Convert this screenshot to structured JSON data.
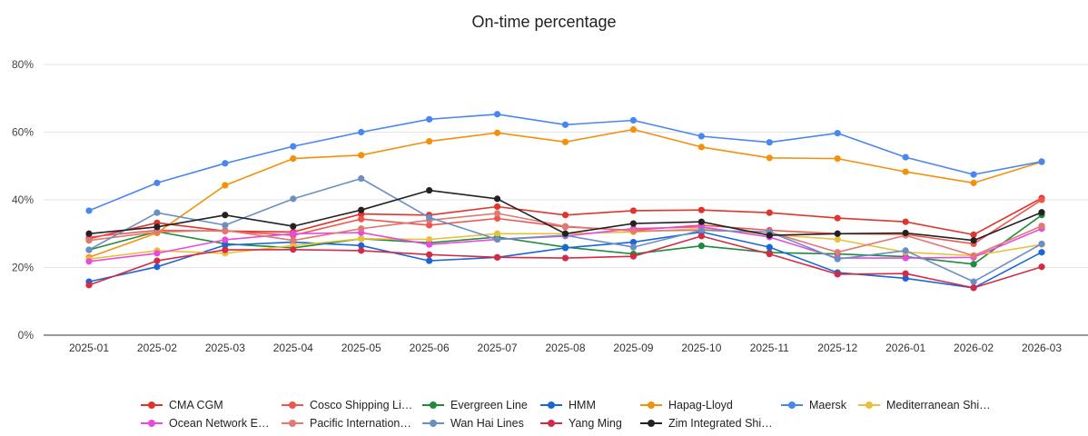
{
  "chart_data": {
    "type": "line",
    "title": "On-time percentage",
    "xlabel": "",
    "ylabel": "",
    "ylim": [
      0,
      80
    ],
    "yticks": [
      "0%",
      "20%",
      "40%",
      "60%",
      "80%"
    ],
    "y_unit": "%",
    "grid": true,
    "legend_position": "bottom",
    "categories": [
      "2025-01",
      "2025-02",
      "2025-03",
      "2025-04",
      "2025-05",
      "2025-06",
      "2025-07",
      "2025-08",
      "2025-09",
      "2025-10",
      "2025-11",
      "2025-12",
      "2026-01",
      "2026-02",
      "2026-03"
    ],
    "series": [
      {
        "name": "CMA CGM",
        "legend_label": "CMA CGM",
        "color": "#e0342c",
        "values": [
          28.5,
          33.2,
          30.8,
          30.5,
          35.8,
          35.5,
          38.0,
          35.5,
          36.8,
          37.0,
          36.2,
          34.6,
          33.5,
          29.7,
          40.5
        ]
      },
      {
        "name": "Cosco Shipping Lines",
        "legend_label": "Cosco Shipping Li…",
        "color": "#f0554d",
        "values": [
          29.0,
          31.0,
          30.8,
          29.5,
          34.3,
          32.5,
          34.5,
          32.0,
          31.0,
          32.5,
          31.0,
          30.0,
          29.8,
          27.0,
          40.0
        ]
      },
      {
        "name": "Evergreen Line",
        "legend_label": "Evergreen Line",
        "color": "#1e8c3a",
        "values": [
          25.2,
          30.6,
          27.0,
          25.8,
          28.5,
          27.3,
          29.0,
          26.0,
          24.0,
          26.4,
          24.4,
          24.0,
          23.2,
          21.0,
          35.5
        ]
      },
      {
        "name": "HMM",
        "legend_label": "HMM",
        "color": "#1a66d9",
        "values": [
          15.8,
          20.2,
          26.6,
          27.5,
          26.5,
          22.0,
          23.0,
          25.8,
          27.5,
          30.5,
          26.0,
          18.5,
          16.8,
          14.0,
          24.5
        ]
      },
      {
        "name": "Hapag-Lloyd",
        "legend_label": "Hapag-Lloyd",
        "color": "#f4900c",
        "values": [
          23.0,
          30.2,
          44.3,
          52.2,
          53.2,
          57.3,
          59.8,
          57.1,
          60.8,
          55.6,
          52.4,
          52.2,
          48.3,
          45.0,
          51.2
        ]
      },
      {
        "name": "Maersk",
        "legend_label": "Maersk",
        "color": "#4a86f0",
        "values": [
          36.8,
          45.0,
          50.8,
          55.8,
          60.0,
          63.8,
          65.3,
          62.2,
          63.5,
          58.8,
          57.0,
          59.7,
          52.6,
          47.5,
          51.3
        ]
      },
      {
        "name": "Mediterranean Shipping Company",
        "legend_label": "Mediterranean Shi…",
        "color": "#e8c03a",
        "values": [
          22.5,
          25.0,
          24.2,
          26.5,
          28.5,
          28.3,
          30.0,
          30.0,
          30.5,
          31.5,
          29.8,
          28.3,
          24.5,
          23.5,
          26.8
        ]
      },
      {
        "name": "Ocean Network Express",
        "legend_label": "Ocean Network E…",
        "color": "#e84ae0",
        "values": [
          21.8,
          24.2,
          28.2,
          30.0,
          30.3,
          26.8,
          28.3,
          29.3,
          31.5,
          32.0,
          29.0,
          22.8,
          22.8,
          23.0,
          31.5
        ]
      },
      {
        "name": "Pacific International Lines",
        "legend_label": "Pacific Internation…",
        "color": "#e07873",
        "values": [
          28.0,
          30.5,
          31.0,
          28.0,
          31.5,
          34.0,
          36.0,
          32.2,
          30.8,
          31.0,
          30.5,
          24.5,
          29.5,
          23.5,
          32.3
        ]
      },
      {
        "name": "Wan Hai Lines",
        "legend_label": "Wan Hai Lines",
        "color": "#6b8fc4",
        "values": [
          25.2,
          36.2,
          32.5,
          40.3,
          46.3,
          34.8,
          28.3,
          29.5,
          26.0,
          31.0,
          30.5,
          22.5,
          25.0,
          15.8,
          27.0
        ]
      },
      {
        "name": "Yang Ming",
        "legend_label": "Yang Ming",
        "color": "#d42a45",
        "values": [
          14.8,
          22.0,
          25.2,
          25.3,
          25.0,
          23.8,
          23.0,
          22.8,
          23.3,
          29.3,
          24.0,
          18.0,
          18.2,
          14.0,
          20.2
        ]
      },
      {
        "name": "Zim Integrated Shipping Services",
        "legend_label": "Zim Integrated Shi…",
        "color": "#222222",
        "values": [
          30.0,
          32.0,
          35.5,
          32.2,
          37.0,
          42.8,
          40.3,
          30.0,
          33.0,
          33.5,
          29.5,
          30.0,
          30.2,
          28.0,
          36.3
        ]
      }
    ]
  }
}
